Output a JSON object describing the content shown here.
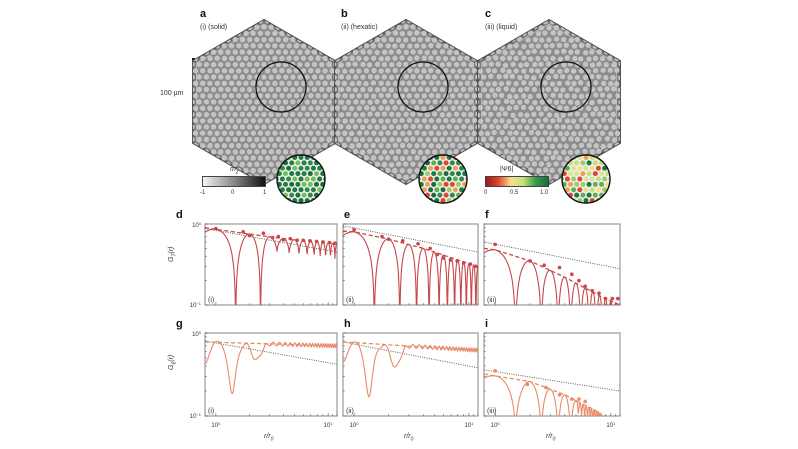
{
  "panels_top": [
    {
      "letter": "a",
      "label": "(i) (solid)"
    },
    {
      "letter": "b",
      "label": "(ii) (hexatic)"
    },
    {
      "letter": "c",
      "label": "(iii) (liquid)"
    }
  ],
  "scale_bar": {
    "label": "100 µm"
  },
  "colorbar_mz": {
    "title": "m_z",
    "ticks": [
      "-1",
      "0",
      "1"
    ]
  },
  "colorbar_psi": {
    "title": "|Ψ6|",
    "ticks": [
      "0",
      "0.5",
      "1.0"
    ],
    "colors": [
      "#b2182b",
      "#f7e08a",
      "#1a7a3a"
    ]
  },
  "colors": {
    "gt": "#c8474a",
    "g6": "#e98a6a",
    "ref": "#555555"
  },
  "chart_data": [
    {
      "panel": "d",
      "type": "line",
      "ylabel": "G_T(r)",
      "xlabel": "r/r0",
      "inner_label": "(i)",
      "xlim": [
        0.8,
        12
      ],
      "ylim": [
        0.1,
        1
      ],
      "xscale": "log",
      "yscale": "log",
      "xticks": [
        "10^0",
        "10^1"
      ],
      "yticks": [
        "10^0",
        "10^-1"
      ],
      "ref_line": {
        "x": [
          0.8,
          12
        ],
        "y": [
          0.88,
          0.45
        ]
      },
      "envelope": {
        "x": [
          0.8,
          1,
          2,
          4,
          8,
          12
        ],
        "y": [
          0.9,
          0.86,
          0.75,
          0.66,
          0.6,
          0.57
        ]
      },
      "peaks": {
        "x": [
          1.0,
          1.75,
          2.0,
          2.65,
          3.2,
          3.6,
          4.0,
          4.6,
          5.3,
          6.0,
          6.9,
          7.9,
          9.0,
          10.3,
          11.5
        ],
        "y": [
          0.88,
          0.8,
          0.72,
          0.77,
          0.68,
          0.7,
          0.64,
          0.66,
          0.63,
          0.63,
          0.62,
          0.61,
          0.6,
          0.59,
          0.58
        ]
      }
    },
    {
      "panel": "e",
      "type": "line",
      "ylabel": "",
      "xlabel": "r/r0",
      "inner_label": "(ii)",
      "xlim": [
        0.8,
        12
      ],
      "ylim": [
        0.1,
        1
      ],
      "xscale": "log",
      "yscale": "log",
      "ref_line": {
        "x": [
          0.8,
          12
        ],
        "y": [
          0.95,
          0.45
        ]
      },
      "envelope": {
        "x": [
          0.8,
          1,
          2,
          4,
          8,
          12
        ],
        "y": [
          0.82,
          0.8,
          0.65,
          0.5,
          0.36,
          0.3
        ]
      },
      "peaks": {
        "x": [
          1.0,
          1.75,
          2.0,
          2.65,
          3.6,
          4.6,
          5.3,
          6.0,
          6.9,
          7.9,
          9.0,
          10.3,
          11.5
        ],
        "y": [
          0.85,
          0.7,
          0.65,
          0.62,
          0.57,
          0.5,
          0.42,
          0.38,
          0.36,
          0.35,
          0.33,
          0.32,
          0.3
        ]
      }
    },
    {
      "panel": "f",
      "type": "line",
      "ylabel": "",
      "xlabel": "r/r0",
      "inner_label": "(iii)",
      "xlim": [
        0.8,
        12
      ],
      "ylim": [
        0.1,
        1
      ],
      "xscale": "log",
      "yscale": "log",
      "ref_line": {
        "x": [
          0.8,
          12
        ],
        "y": [
          0.6,
          0.28
        ]
      },
      "envelope": {
        "x": [
          0.8,
          1,
          2,
          4,
          8,
          12
        ],
        "y": [
          0.5,
          0.48,
          0.35,
          0.22,
          0.13,
          0.1
        ]
      },
      "peaks": {
        "x": [
          1.0,
          2.0,
          2.65,
          3.6,
          4.6,
          5.3,
          6.0,
          6.9,
          7.9,
          9.0,
          10.3,
          11.5
        ],
        "y": [
          0.56,
          0.35,
          0.31,
          0.29,
          0.24,
          0.2,
          0.17,
          0.15,
          0.14,
          0.12,
          0.12,
          0.12
        ]
      }
    },
    {
      "panel": "g",
      "type": "line",
      "ylabel": "G_6(r)",
      "xlabel": "r/r0",
      "inner_label": "(i)",
      "xlim": [
        0.8,
        12
      ],
      "ylim": [
        0.1,
        1
      ],
      "xscale": "log",
      "yscale": "log",
      "xticks": [
        "10^0",
        "10^1"
      ],
      "yticks": [
        "10^0",
        "10^-1"
      ],
      "ref_line": {
        "x": [
          0.8,
          12
        ],
        "y": [
          0.8,
          0.42
        ]
      },
      "envelope": {
        "x": [
          0.8,
          12
        ],
        "y": [
          0.78,
          0.7
        ]
      },
      "dips": {
        "x": [
          0.8,
          1.4,
          2.3
        ],
        "y": [
          0.45,
          0.18,
          0.47
        ]
      }
    },
    {
      "panel": "h",
      "type": "line",
      "ylabel": "",
      "xlabel": "r/r0",
      "inner_label": "(ii)",
      "xlim": [
        0.8,
        12
      ],
      "ylim": [
        0.1,
        1
      ],
      "xscale": "log",
      "yscale": "log",
      "xticks": [
        "10^0",
        "10^1"
      ],
      "ref_line": {
        "x": [
          0.8,
          12
        ],
        "y": [
          0.78,
          0.38
        ]
      },
      "envelope": {
        "x": [
          0.8,
          12
        ],
        "y": [
          0.78,
          0.62
        ]
      },
      "dips": {
        "x": [
          0.8,
          1.35,
          2.3
        ],
        "y": [
          0.47,
          0.17,
          0.38
        ]
      }
    },
    {
      "panel": "i",
      "type": "line",
      "ylabel": "",
      "xlabel": "r/r0",
      "inner_label": "(iii)",
      "xlim": [
        0.8,
        12
      ],
      "ylim": [
        0.1,
        1
      ],
      "xscale": "log",
      "yscale": "log",
      "xticks": [
        "10^0",
        "10^1"
      ],
      "ref_line": {
        "x": [
          0.8,
          12
        ],
        "y": [
          0.36,
          0.2
        ]
      },
      "envelope": {
        "x": [
          0.8,
          2,
          4,
          8,
          9
        ],
        "y": [
          0.32,
          0.26,
          0.18,
          0.11,
          0.09
        ]
      },
      "peaks": {
        "x": [
          1.0,
          1.9,
          2.75,
          3.6,
          4.6,
          5.3,
          6.0
        ],
        "y": [
          0.35,
          0.24,
          0.22,
          0.18,
          0.16,
          0.16,
          0.15
        ]
      }
    }
  ]
}
